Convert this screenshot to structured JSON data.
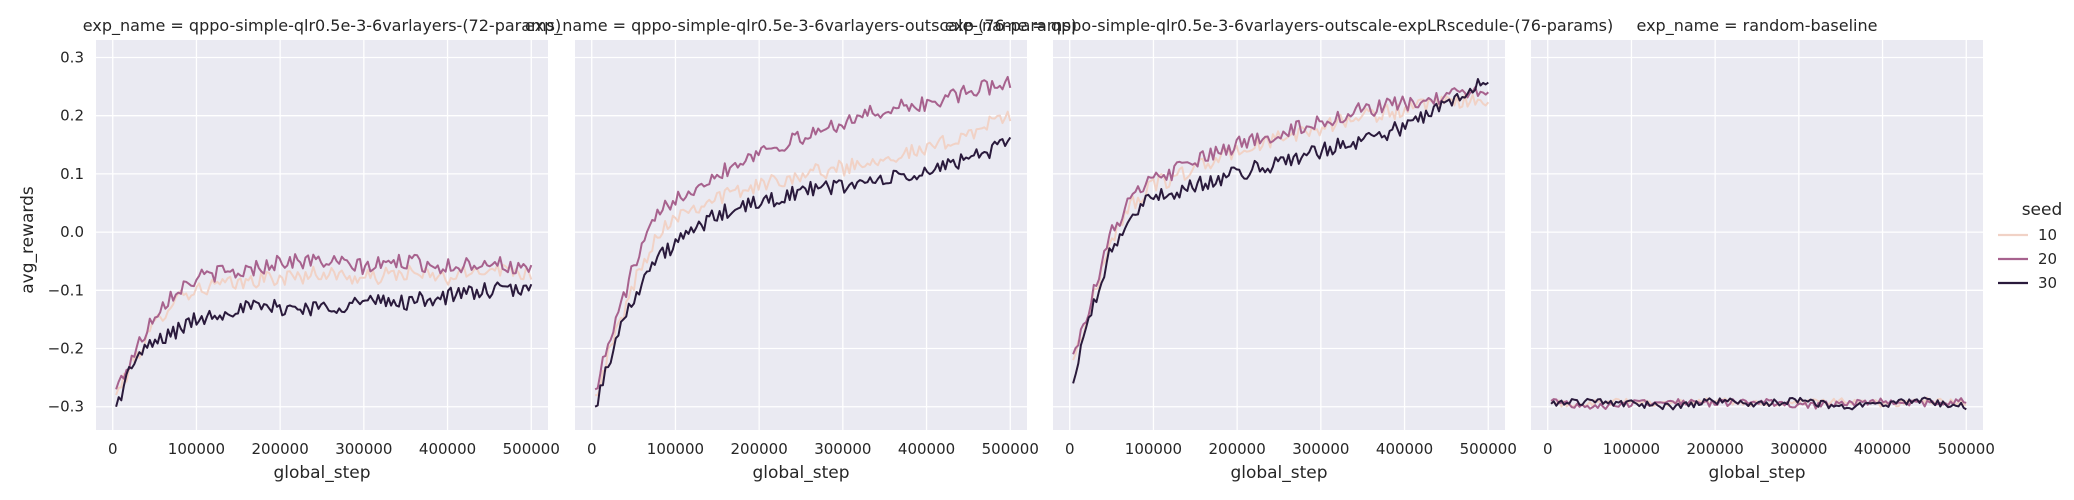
{
  "chart_data": {
    "type": "line",
    "facet_variable": "exp_name",
    "xlabel": "global_step",
    "ylabel": "avg_rewards",
    "xlim": [
      -20000,
      520000
    ],
    "ylim": [
      -0.34,
      0.33
    ],
    "xticks": [
      0,
      100000,
      200000,
      300000,
      400000,
      500000
    ],
    "yticks": [
      -0.3,
      -0.2,
      -0.1,
      0.0,
      0.1,
      0.2,
      0.3
    ],
    "xtick_labels": [
      "0",
      "100000",
      "200000",
      "300000",
      "400000",
      "500000"
    ],
    "ytick_labels": [
      "−0.3",
      "−0.2",
      "−0.1",
      "0.0",
      "0.1",
      "0.2",
      "0.3"
    ],
    "grid": true,
    "legend": {
      "title": "seed",
      "placement": "right",
      "entries": [
        {
          "label": "10",
          "color": "#f1d2c6"
        },
        {
          "label": "20",
          "color": "#a7628e"
        },
        {
          "label": "30",
          "color": "#2a1a3c"
        }
      ]
    },
    "panels": [
      {
        "title": "exp_name = qppo-simple-qlr0.5e-3-6varlayers-(72-params)",
        "series": [
          {
            "name": "10",
            "x": [
              4000,
              25000,
              50000,
              75000,
              100000,
              125000,
              150000,
              175000,
              200000,
              250000,
              300000,
              350000,
              400000,
              450000,
              500000
            ],
            "y": [
              -0.28,
              -0.22,
              -0.16,
              -0.11,
              -0.1,
              -0.09,
              -0.09,
              -0.08,
              -0.08,
              -0.07,
              -0.08,
              -0.07,
              -0.08,
              -0.06,
              -0.07
            ]
          },
          {
            "name": "20",
            "x": [
              4000,
              25000,
              50000,
              75000,
              100000,
              125000,
              150000,
              175000,
              200000,
              250000,
              300000,
              350000,
              400000,
              450000,
              500000
            ],
            "y": [
              -0.27,
              -0.21,
              -0.14,
              -0.1,
              -0.08,
              -0.07,
              -0.07,
              -0.06,
              -0.05,
              -0.05,
              -0.06,
              -0.05,
              -0.06,
              -0.05,
              -0.07
            ]
          },
          {
            "name": "30",
            "x": [
              4000,
              25000,
              50000,
              75000,
              100000,
              125000,
              150000,
              175000,
              200000,
              250000,
              300000,
              350000,
              400000,
              450000,
              500000
            ],
            "y": [
              -0.3,
              -0.22,
              -0.19,
              -0.17,
              -0.15,
              -0.14,
              -0.13,
              -0.13,
              -0.13,
              -0.13,
              -0.12,
              -0.12,
              -0.11,
              -0.1,
              -0.1
            ]
          }
        ]
      },
      {
        "title": "exp_name = qppo-simple-qlr0.5e-3-6varlayers-outscale-(76-params)",
        "series": [
          {
            "name": "10",
            "x": [
              4000,
              25000,
              50000,
              75000,
              100000,
              150000,
              200000,
              250000,
              300000,
              350000,
              400000,
              450000,
              500000
            ],
            "y": [
              -0.28,
              -0.19,
              -0.09,
              -0.01,
              0.03,
              0.06,
              0.08,
              0.1,
              0.11,
              0.13,
              0.14,
              0.17,
              0.2
            ]
          },
          {
            "name": "20",
            "x": [
              4000,
              25000,
              50000,
              75000,
              100000,
              150000,
              200000,
              250000,
              300000,
              350000,
              400000,
              450000,
              500000
            ],
            "y": [
              -0.27,
              -0.17,
              -0.06,
              0.02,
              0.06,
              0.1,
              0.14,
              0.16,
              0.19,
              0.21,
              0.22,
              0.24,
              0.26
            ]
          },
          {
            "name": "30",
            "x": [
              4000,
              25000,
              50000,
              75000,
              100000,
              150000,
              200000,
              250000,
              300000,
              350000,
              400000,
              450000,
              500000
            ],
            "y": [
              -0.3,
              -0.2,
              -0.11,
              -0.05,
              -0.02,
              0.03,
              0.05,
              0.07,
              0.08,
              0.09,
              0.1,
              0.13,
              0.15
            ]
          }
        ]
      },
      {
        "title": "exp_name = qppo-simple-qlr0.5e-3-6varlayers-outscale-expLRscedule-(76-params)",
        "series": [
          {
            "name": "10",
            "x": [
              4000,
              25000,
              50000,
              75000,
              100000,
              150000,
              200000,
              250000,
              300000,
              350000,
              400000,
              450000,
              500000
            ],
            "y": [
              -0.22,
              -0.13,
              -0.01,
              0.05,
              0.08,
              0.11,
              0.14,
              0.16,
              0.18,
              0.2,
              0.21,
              0.22,
              0.23
            ]
          },
          {
            "name": "20",
            "x": [
              4000,
              25000,
              50000,
              75000,
              100000,
              150000,
              200000,
              250000,
              300000,
              350000,
              400000,
              450000,
              500000
            ],
            "y": [
              -0.21,
              -0.12,
              0.0,
              0.06,
              0.09,
              0.12,
              0.15,
              0.17,
              0.19,
              0.21,
              0.22,
              0.23,
              0.25
            ]
          },
          {
            "name": "30",
            "x": [
              4000,
              25000,
              50000,
              75000,
              100000,
              150000,
              200000,
              250000,
              300000,
              350000,
              400000,
              450000,
              500000
            ],
            "y": [
              -0.26,
              -0.14,
              -0.03,
              0.03,
              0.06,
              0.08,
              0.1,
              0.12,
              0.14,
              0.16,
              0.18,
              0.22,
              0.27
            ]
          }
        ]
      },
      {
        "title": "exp_name = random-baseline",
        "series": [
          {
            "name": "10",
            "x": [
              4000,
              50000,
              100000,
              150000,
              200000,
              250000,
              300000,
              350000,
              400000,
              450000,
              500000
            ],
            "y": [
              -0.295,
              -0.295,
              -0.29,
              -0.295,
              -0.29,
              -0.295,
              -0.295,
              -0.29,
              -0.295,
              -0.29,
              -0.295
            ]
          },
          {
            "name": "20",
            "x": [
              4000,
              50000,
              100000,
              150000,
              200000,
              250000,
              300000,
              350000,
              400000,
              450000,
              500000
            ],
            "y": [
              -0.29,
              -0.3,
              -0.295,
              -0.29,
              -0.295,
              -0.29,
              -0.3,
              -0.295,
              -0.29,
              -0.295,
              -0.29
            ]
          },
          {
            "name": "30",
            "x": [
              4000,
              50000,
              100000,
              150000,
              200000,
              250000,
              300000,
              350000,
              400000,
              450000,
              500000
            ],
            "y": [
              -0.295,
              -0.29,
              -0.295,
              -0.3,
              -0.29,
              -0.295,
              -0.29,
              -0.3,
              -0.295,
              -0.29,
              -0.3
            ]
          }
        ]
      }
    ]
  }
}
